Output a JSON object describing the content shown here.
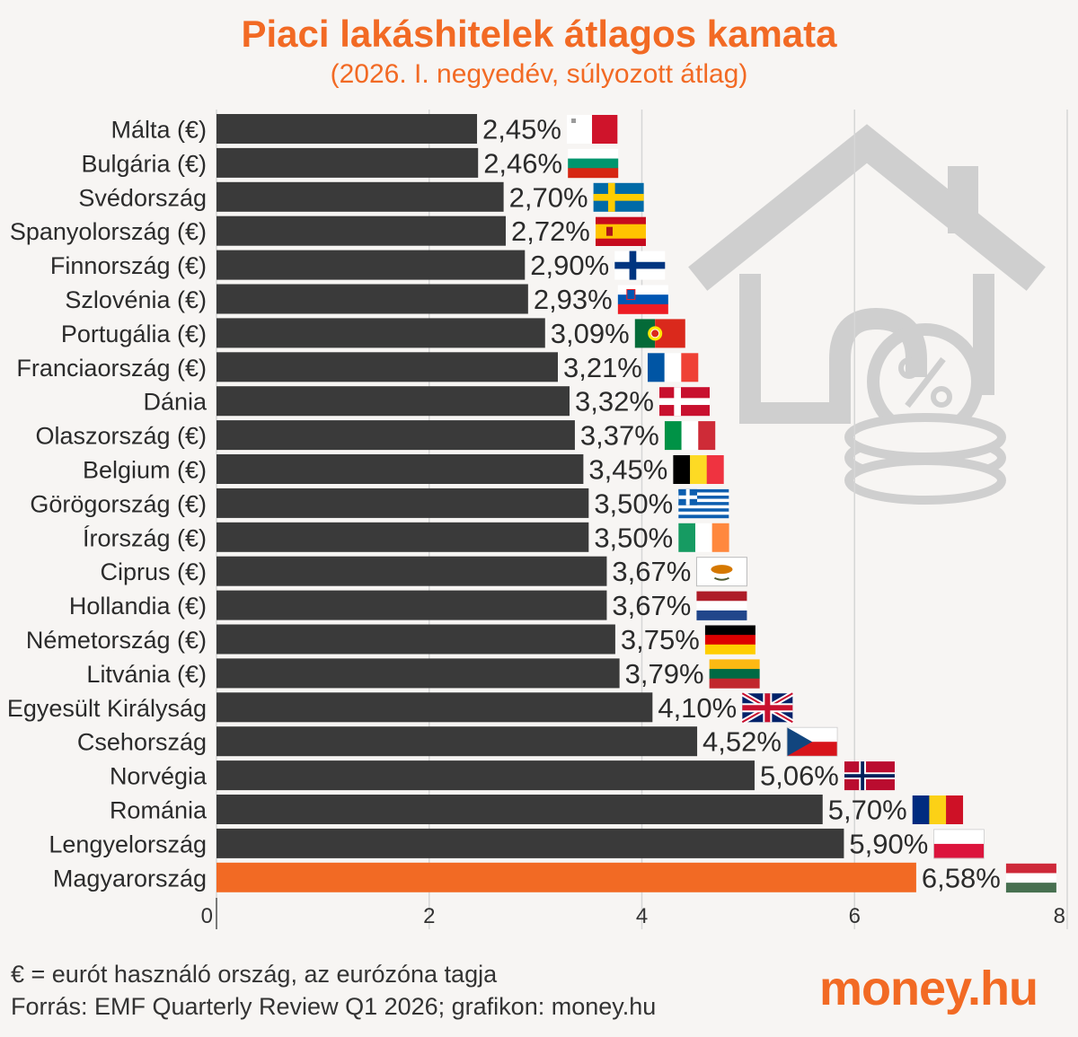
{
  "title": "Piaci lakáshitelek átlagos kamata",
  "subtitle": "(2026. I. negyedév, súlyozott átlag)",
  "footnote_euro": "€ = eurót használó ország, az eurózóna tagja",
  "footnote_source": "Forrás: EMF Quarterly Review Q1 2026; grafikon: money.hu",
  "logo": {
    "main": "money",
    "suffix": ".hu"
  },
  "colors": {
    "bar": "#3a3a3a",
    "highlight": "#f26a24",
    "accent": "#f26a24",
    "grid": "#d6d6d6",
    "house_icon": "#cfcfcf"
  },
  "decor_icon": "house-percent-coins-icon",
  "chart_data": {
    "type": "bar",
    "orientation": "horizontal",
    "title": "Piaci lakáshitelek átlagos kamata",
    "subtitle": "(2026. I. negyedév, súlyozott átlag)",
    "xlim": [
      0,
      8
    ],
    "xticks": [
      0,
      2,
      4,
      6,
      8
    ],
    "grid": true,
    "highlight": "Magyarország",
    "categories": [
      "Málta (€)",
      "Bulgária (€)",
      "Svédország",
      "Spanyolország (€)",
      "Finnország (€)",
      "Szlovénia (€)",
      "Portugália (€)",
      "Franciaország (€)",
      "Dánia",
      "Olaszország (€)",
      "Belgium (€)",
      "Görögország (€)",
      "Írország (€)",
      "Ciprus (€)",
      "Hollandia (€)",
      "Németország (€)",
      "Litvánia (€)",
      "Egyesült Királyság",
      "Csehország",
      "Norvégia",
      "Románia",
      "Lengyelország",
      "Magyarország"
    ],
    "values": [
      2.45,
      2.46,
      2.7,
      2.72,
      2.9,
      2.93,
      3.09,
      3.21,
      3.32,
      3.37,
      3.45,
      3.5,
      3.5,
      3.67,
      3.67,
      3.75,
      3.79,
      4.1,
      4.52,
      5.06,
      5.7,
      5.9,
      6.58
    ],
    "value_labels": [
      "2,45%",
      "2,46%",
      "2,70%",
      "2,72%",
      "2,90%",
      "2,93%",
      "3,09%",
      "3,21%",
      "3,32%",
      "3,37%",
      "3,45%",
      "3,50%",
      "3,50%",
      "3,67%",
      "3,67%",
      "3,75%",
      "3,79%",
      "4,10%",
      "4,52%",
      "5,06%",
      "5,70%",
      "5,90%",
      "6,58%"
    ],
    "flags": [
      "malta-flag-icon",
      "bulgaria-flag-icon",
      "sweden-flag-icon",
      "spain-flag-icon",
      "finland-flag-icon",
      "slovenia-flag-icon",
      "portugal-flag-icon",
      "france-flag-icon",
      "denmark-flag-icon",
      "italy-flag-icon",
      "belgium-flag-icon",
      "greece-flag-icon",
      "ireland-flag-icon",
      "cyprus-flag-icon",
      "netherlands-flag-icon",
      "germany-flag-icon",
      "lithuania-flag-icon",
      "uk-flag-icon",
      "czechia-flag-icon",
      "norway-flag-icon",
      "romania-flag-icon",
      "poland-flag-icon",
      "hungary-flag-icon"
    ]
  }
}
